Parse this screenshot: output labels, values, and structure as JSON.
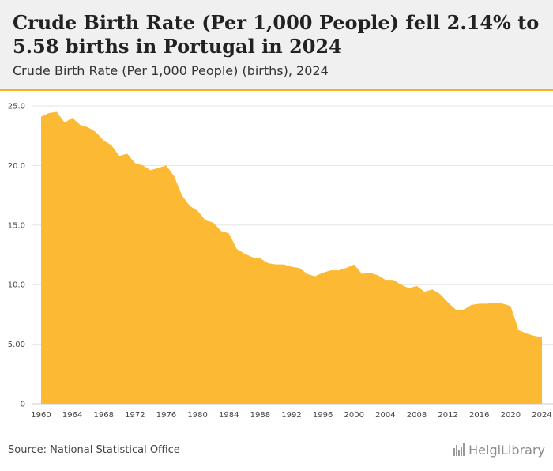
{
  "header": {
    "title": "Crude Birth Rate (Per 1,000 People) fell 2.14% to 5.58 births in Portugal in 2024",
    "subtitle": "Crude Birth Rate (Per 1,000 People) (births), 2024"
  },
  "footer": {
    "source": "Source: National Statistical Office",
    "brand": "HelgiLibrary"
  },
  "colors": {
    "area": "#fbb934",
    "grid": "#e6e6e6",
    "accent": "#f5b323"
  },
  "chart_data": {
    "type": "area",
    "title": "Crude Birth Rate (Per 1,000 People) fell 2.14% to 5.58 births in Portugal in 2024",
    "subtitle": "Crude Birth Rate (Per 1,000 People) (births), 2024",
    "xlabel": "",
    "ylabel": "",
    "xlim": [
      1960,
      2024
    ],
    "ylim": [
      0,
      25
    ],
    "grid": true,
    "x_ticks": [
      "1960",
      "1964",
      "1968",
      "1972",
      "1976",
      "1980",
      "1984",
      "1988",
      "1992",
      "1996",
      "2000",
      "2004",
      "2008",
      "2012",
      "2016",
      "2020",
      "2024"
    ],
    "y_ticks": [
      "0",
      "5.00",
      "10.0",
      "15.0",
      "20.0",
      "25.0"
    ],
    "y_tick_values": [
      0,
      5,
      10,
      15,
      20,
      25
    ],
    "x": [
      1960,
      1961,
      1962,
      1963,
      1964,
      1965,
      1966,
      1967,
      1968,
      1969,
      1970,
      1971,
      1972,
      1973,
      1974,
      1975,
      1976,
      1977,
      1978,
      1979,
      1980,
      1981,
      1982,
      1983,
      1984,
      1985,
      1986,
      1987,
      1988,
      1989,
      1990,
      1991,
      1992,
      1993,
      1994,
      1995,
      1996,
      1997,
      1998,
      1999,
      2000,
      2001,
      2002,
      2003,
      2004,
      2005,
      2006,
      2007,
      2008,
      2009,
      2010,
      2011,
      2012,
      2013,
      2014,
      2015,
      2016,
      2017,
      2018,
      2019,
      2020,
      2021,
      2022,
      2023,
      2024
    ],
    "values": [
      24.1,
      24.4,
      24.5,
      23.6,
      24.0,
      23.4,
      23.2,
      22.8,
      22.1,
      21.7,
      20.8,
      21.0,
      20.2,
      20.0,
      19.6,
      19.8,
      20.0,
      19.1,
      17.5,
      16.6,
      16.2,
      15.4,
      15.2,
      14.5,
      14.3,
      13.0,
      12.6,
      12.3,
      12.2,
      11.8,
      11.7,
      11.7,
      11.5,
      11.4,
      10.9,
      10.7,
      11.0,
      11.2,
      11.2,
      11.4,
      11.7,
      10.9,
      11.0,
      10.8,
      10.4,
      10.4,
      10.0,
      9.7,
      9.9,
      9.4,
      9.6,
      9.2,
      8.5,
      7.9,
      7.9,
      8.3,
      8.4,
      8.4,
      8.5,
      8.4,
      8.2,
      6.2,
      5.9,
      5.7,
      5.58
    ]
  }
}
